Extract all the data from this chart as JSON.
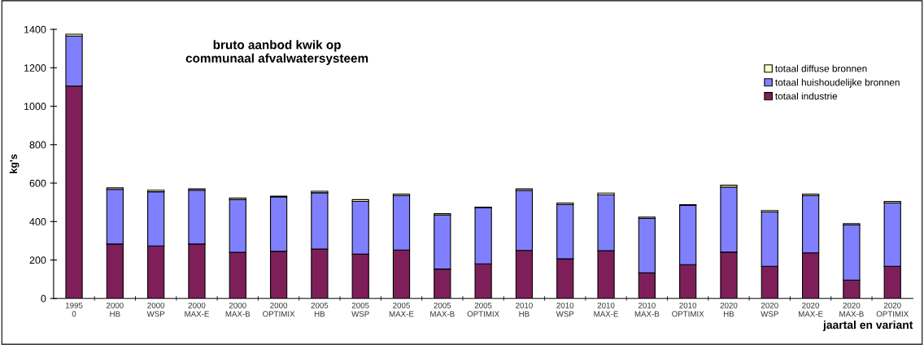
{
  "chart_data": {
    "type": "bar",
    "stacked": true,
    "title": "bruto aanbod kwik op\ncommunaal afvalwatersysteem",
    "xlabel": "jaartal en variant",
    "ylabel": "kg's",
    "categories": [
      "1995\n0",
      "2000\nHB",
      "2000\nWSP",
      "2000\nMAX-E",
      "2000\nMAX-B",
      "2000\nOPTIMIX",
      "2005\nHB",
      "2005\nWSP",
      "2005\nMAX-E",
      "2005\nMAX-B",
      "2005\nOPTIMIX",
      "2010\nHB",
      "2010\nWSP",
      "2010\nMAX-E",
      "2010\nMAX-B",
      "2010\nOPTIMIX",
      "2020\nHB",
      "2020\nWSP",
      "2020\nMAX-E",
      "2020\nMAX-B",
      "2020\nOPTIMIX"
    ],
    "series": [
      {
        "name": "totaal industrie",
        "color": "#7f1f5a",
        "values": [
          1105,
          283,
          273,
          283,
          240,
          245,
          257,
          230,
          252,
          153,
          180,
          250,
          206,
          248,
          133,
          176,
          241,
          167,
          237,
          95,
          167
        ]
      },
      {
        "name": "totaal huishoudelijke bronnen",
        "color": "#8080ff",
        "values": [
          260,
          284,
          282,
          280,
          275,
          283,
          293,
          275,
          283,
          281,
          291,
          312,
          282,
          291,
          283,
          308,
          338,
          283,
          298,
          287,
          330
        ]
      },
      {
        "name": "totaal diffuse bronnen",
        "color": "#ffffc0",
        "values": [
          10,
          8,
          8,
          7,
          8,
          4,
          8,
          9,
          8,
          7,
          4,
          8,
          8,
          9,
          7,
          4,
          10,
          7,
          8,
          7,
          8
        ]
      }
    ],
    "ylim": [
      0,
      1400
    ],
    "yticks": [
      0,
      200,
      400,
      600,
      800,
      1000,
      1200,
      1400
    ],
    "grid": false,
    "legend": "top right"
  }
}
